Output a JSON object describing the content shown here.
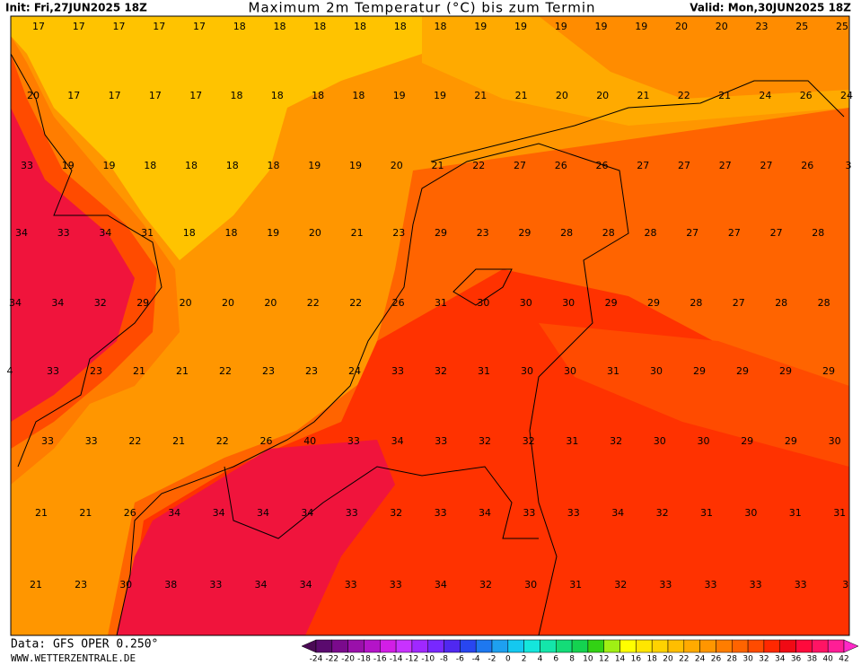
{
  "header": {
    "init": "Init: Fri,27JUN2025 18Z",
    "title": "Maximum 2m Temperatur (°C) bis zum Termin",
    "valid": "Valid: Mon,30JUN2025 18Z"
  },
  "map": {
    "rows": [
      [
        17,
        17,
        17,
        17,
        17,
        18,
        18,
        18,
        18,
        18,
        18,
        19,
        19,
        19,
        19,
        19,
        20,
        20,
        23,
        25,
        25
      ],
      [
        20,
        17,
        17,
        17,
        17,
        18,
        18,
        18,
        18,
        19,
        19,
        21,
        21,
        20,
        20,
        21,
        22,
        21,
        24,
        26,
        24
      ],
      [
        33,
        19,
        19,
        18,
        18,
        18,
        18,
        19,
        19,
        20,
        21,
        22,
        27,
        26,
        26,
        27,
        27,
        27,
        27,
        26,
        3
      ],
      [
        34,
        33,
        34,
        31,
        18,
        18,
        19,
        20,
        21,
        23,
        29,
        23,
        29,
        28,
        28,
        28,
        27,
        27,
        27,
        28
      ],
      [
        34,
        34,
        32,
        29,
        20,
        20,
        20,
        22,
        22,
        26,
        31,
        30,
        30,
        30,
        29,
        29,
        28,
        27,
        28,
        28
      ],
      [
        4,
        33,
        23,
        21,
        21,
        22,
        23,
        23,
        24,
        33,
        32,
        31,
        30,
        30,
        31,
        30,
        29,
        29,
        29,
        29
      ],
      [
        33,
        33,
        22,
        21,
        22,
        26,
        40,
        33,
        34,
        33,
        32,
        32,
        31,
        32,
        30,
        30,
        29,
        29,
        30
      ],
      [
        21,
        21,
        26,
        34,
        34,
        34,
        34,
        33,
        32,
        33,
        34,
        33,
        33,
        34,
        32,
        31,
        30,
        31,
        31
      ],
      [
        21,
        23,
        30,
        38,
        33,
        34,
        34,
        33,
        33,
        34,
        32,
        30,
        31,
        32,
        33,
        33,
        33,
        33,
        3
      ]
    ]
  },
  "colorbar": {
    "labels": [
      -24,
      -22,
      -20,
      -18,
      -16,
      -14,
      -12,
      -10,
      -8,
      -6,
      -4,
      -2,
      0,
      2,
      4,
      6,
      8,
      10,
      12,
      14,
      16,
      18,
      20,
      22,
      24,
      26,
      28,
      30,
      32,
      34,
      36,
      38,
      40,
      42
    ],
    "colors": [
      "#4b0a55",
      "#5a0a6e",
      "#7a0a8c",
      "#9a10aa",
      "#b414c8",
      "#d21ee6",
      "#c832ff",
      "#a028ff",
      "#7828ff",
      "#5028f0",
      "#2846f0",
      "#1e78f0",
      "#1ea0f0",
      "#14c8f0",
      "#14e6dc",
      "#14e6aa",
      "#14dc78",
      "#14d250",
      "#32d214",
      "#a0f014",
      "#ffff00",
      "#ffe600",
      "#ffd200",
      "#ffbe00",
      "#ffaa00",
      "#ff9600",
      "#ff7d00",
      "#ff6400",
      "#ff4b00",
      "#ff2800",
      "#f00a14",
      "#ff0a3c",
      "#ff1464",
      "#ff1e96",
      "#ff28c8"
    ]
  },
  "footer": {
    "data": "Data: GFS OPER 0.250°",
    "site": "WWW.WETTERZENTRALE.DE"
  }
}
